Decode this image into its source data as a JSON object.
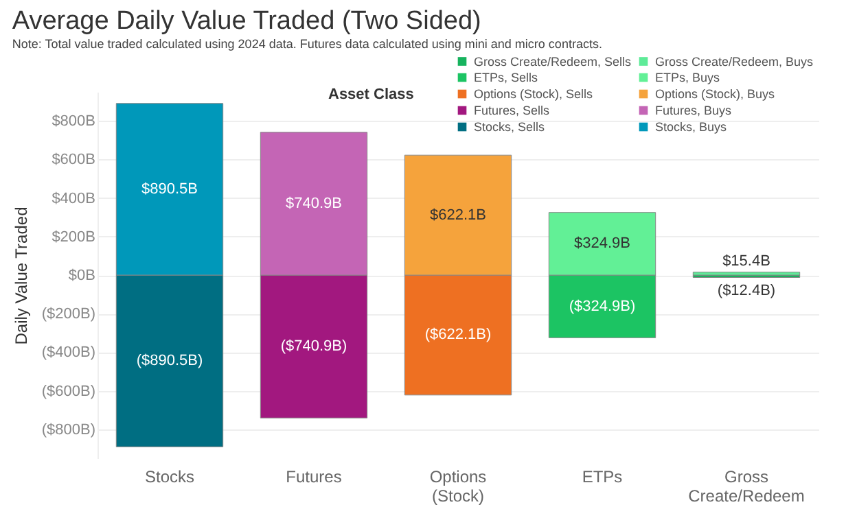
{
  "chart_data": {
    "type": "bar",
    "title": "Average Daily Value Traded (Two Sided)",
    "subtitle": "Note: Total value traded calculated using 2024 data. Futures data calculated using mini and micro contracts.",
    "ylabel": "Daily Value Traded",
    "legend_title": "Asset Class",
    "legend": "top right",
    "grid": "y",
    "stacked": true,
    "categories": [
      "Stocks",
      "Futures",
      "Options (Stock)",
      "ETPs",
      "Gross Create/Redeem"
    ],
    "ylim": [
      -950,
      950
    ],
    "yticks": [
      {
        "value": -800,
        "label": "($800B)"
      },
      {
        "value": -600,
        "label": "($600B)"
      },
      {
        "value": -400,
        "label": "($400B)"
      },
      {
        "value": -200,
        "label": "($200B)"
      },
      {
        "value": 0,
        "label": "$0B"
      },
      {
        "value": 200,
        "label": "$200B"
      },
      {
        "value": 400,
        "label": "$400B"
      },
      {
        "value": 600,
        "label": "$600B"
      },
      {
        "value": 800,
        "label": "$800B"
      }
    ],
    "series": [
      {
        "name": "Gross Create/Redeem, Sells",
        "color": "#17b35e",
        "values": [
          null,
          null,
          null,
          null,
          -12.4
        ],
        "value_labels": [
          null,
          null,
          null,
          null,
          "($12.4B)"
        ]
      },
      {
        "name": "Gross Create/Redeem, Buys",
        "color": "#5eeb98",
        "values": [
          null,
          null,
          null,
          null,
          15.4
        ],
        "value_labels": [
          null,
          null,
          null,
          null,
          "$15.4B"
        ]
      },
      {
        "name": "ETPs, Sells",
        "color": "#1cc463",
        "values": [
          null,
          null,
          null,
          -324.9,
          null
        ],
        "value_labels": [
          null,
          null,
          null,
          "($324.9B)",
          null
        ]
      },
      {
        "name": "ETPs, Buys",
        "color": "#62f096",
        "values": [
          null,
          null,
          null,
          324.9,
          null
        ],
        "value_labels": [
          null,
          null,
          null,
          "$324.9B",
          null
        ]
      },
      {
        "name": "Options (Stock), Sells",
        "color": "#ee7022",
        "values": [
          null,
          null,
          -622.1,
          null,
          null
        ],
        "value_labels": [
          null,
          null,
          "($622.1B)",
          null,
          null
        ]
      },
      {
        "name": "Options (Stock), Buys",
        "color": "#f5a33c",
        "values": [
          null,
          null,
          622.1,
          null,
          null
        ],
        "value_labels": [
          null,
          null,
          "$622.1B",
          null,
          null
        ]
      },
      {
        "name": "Futures, Sells",
        "color": "#a2187f",
        "values": [
          null,
          -740.9,
          null,
          null,
          null
        ],
        "value_labels": [
          null,
          "($740.9B)",
          null,
          null,
          null
        ]
      },
      {
        "name": "Futures, Buys",
        "color": "#c465b5",
        "values": [
          null,
          740.9,
          null,
          null,
          null
        ],
        "value_labels": [
          null,
          "$740.9B",
          null,
          null,
          null
        ]
      },
      {
        "name": "Stocks, Sells",
        "color": "#006e82",
        "values": [
          -890.5,
          null,
          null,
          null,
          null
        ],
        "value_labels": [
          "($890.5B)",
          null,
          null,
          null,
          null
        ]
      },
      {
        "name": "Stocks, Buys",
        "color": "#0098ba",
        "values": [
          890.5,
          null,
          null,
          null,
          null
        ],
        "value_labels": [
          "$890.5B",
          null,
          null,
          null,
          null
        ]
      }
    ]
  }
}
